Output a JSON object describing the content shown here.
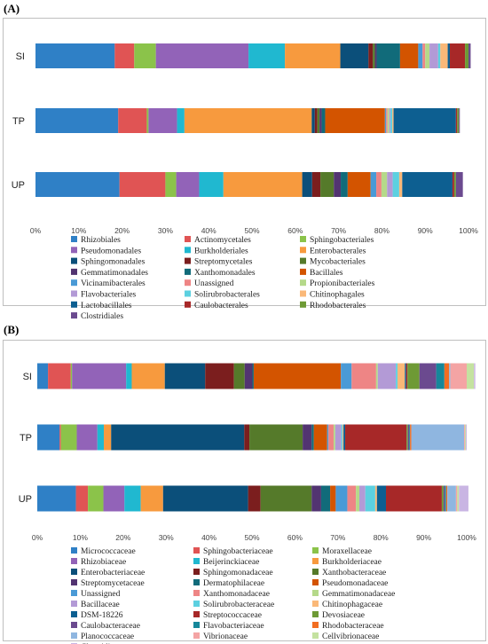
{
  "chart_data": [
    {
      "panel": "(A)",
      "type": "bar",
      "orientation": "horizontal",
      "stacked": true,
      "categories": [
        "SI",
        "TP",
        "UP"
      ],
      "x_ticks": [
        "0%",
        "10%",
        "20%",
        "30%",
        "40%",
        "50%",
        "60%",
        "70%",
        "80%",
        "90%",
        "100%"
      ],
      "xlim": [
        0,
        100
      ],
      "legend_position": "bottom",
      "series": [
        {
          "name": "Rhizobiales",
          "color": "#2f80c6",
          "values": [
            18.3,
            19.1,
            19.4
          ]
        },
        {
          "name": "Actinomycetales",
          "color": "#e05454",
          "values": [
            4.5,
            6.6,
            10.6
          ]
        },
        {
          "name": "Sphingobacteriales",
          "color": "#8bc34a",
          "values": [
            5.0,
            0.4,
            2.5
          ]
        },
        {
          "name": "Pseudomonadales",
          "color": "#9263b8",
          "values": [
            21.4,
            6.6,
            5.3
          ]
        },
        {
          "name": "Burkholderiales",
          "color": "#20b8d0",
          "values": [
            8.4,
            1.7,
            5.6
          ]
        },
        {
          "name": "Enterobacterales",
          "color": "#f79a3e",
          "values": [
            12.8,
            29.4,
            18.2
          ]
        },
        {
          "name": "Sphingomonadales",
          "color": "#0b4f7a",
          "values": [
            6.5,
            0.7,
            2.3
          ]
        },
        {
          "name": "Streptomycetales",
          "color": "#7b1e1e",
          "values": [
            1.0,
            0.6,
            1.9
          ]
        },
        {
          "name": "Mycobacteriales",
          "color": "#557a2a",
          "values": [
            0.5,
            0.5,
            3.1
          ]
        },
        {
          "name": "Gemmatimonadales",
          "color": "#523471",
          "values": [
            0.4,
            0.5,
            1.6
          ]
        },
        {
          "name": "Xanthomonadales",
          "color": "#116b7a",
          "values": [
            5.4,
            0.8,
            1.6
          ]
        },
        {
          "name": "Bacillales",
          "color": "#d35400",
          "values": [
            4.2,
            13.8,
            5.3
          ]
        },
        {
          "name": "Vicinamibacterales",
          "color": "#4a9ad6",
          "values": [
            1.0,
            0.3,
            1.3
          ]
        },
        {
          "name": "Unassigned",
          "color": "#ee8585",
          "values": [
            0.6,
            0.3,
            1.2
          ]
        },
        {
          "name": "Propionibacteriales",
          "color": "#b5d98a",
          "values": [
            1.0,
            0.4,
            1.3
          ]
        },
        {
          "name": "Flavobacteriales",
          "color": "#b39ad6",
          "values": [
            2.0,
            0.3,
            1.3
          ]
        },
        {
          "name": "Solirubrobacterales",
          "color": "#5cd0e0",
          "values": [
            0.5,
            0.4,
            1.5
          ]
        },
        {
          "name": "Chitinophagales",
          "color": "#fab878",
          "values": [
            1.7,
            0.3,
            0.7
          ]
        },
        {
          "name": "Lactobacillales",
          "color": "#0d5f91",
          "values": [
            0.5,
            14.4,
            11.6
          ]
        },
        {
          "name": "Caulobacterales",
          "color": "#a72828",
          "values": [
            3.5,
            0.3,
            0.4
          ]
        },
        {
          "name": "Rhodobacterales",
          "color": "#6e9a35",
          "values": [
            0.8,
            0.4,
            0.4
          ]
        },
        {
          "name": "Clostridiales",
          "color": "#6b4a8f",
          "values": [
            0.5,
            0.2,
            1.6
          ]
        }
      ]
    },
    {
      "panel": "(B)",
      "type": "bar",
      "orientation": "horizontal",
      "stacked": true,
      "categories": [
        "SI",
        "TP",
        "UP"
      ],
      "x_ticks": [
        "0%",
        "10%",
        "20%",
        "30%",
        "40%",
        "50%",
        "60%",
        "70%",
        "80%",
        "90%",
        "100%"
      ],
      "xlim": [
        0,
        100
      ],
      "legend_position": "bottom",
      "series": [
        {
          "name": "Micrococcaceae",
          "color": "#2f80c6",
          "values": [
            2.5,
            5.2,
            9.0
          ]
        },
        {
          "name": "Sphingobacteriaceae",
          "color": "#e05454",
          "values": [
            5.3,
            0.3,
            2.8
          ]
        },
        {
          "name": "Moraxellaceae",
          "color": "#8bc34a",
          "values": [
            0.3,
            3.7,
            3.6
          ]
        },
        {
          "name": "Rhizobiaceae",
          "color": "#9263b8",
          "values": [
            12.6,
            4.8,
            4.9
          ]
        },
        {
          "name": "Beijerinckiaceae",
          "color": "#20b8d0",
          "values": [
            1.3,
            1.5,
            3.8
          ]
        },
        {
          "name": "Burkholderiaceae",
          "color": "#f79a3e",
          "values": [
            7.7,
            1.7,
            5.2
          ]
        },
        {
          "name": "Enterobacteriaceae",
          "color": "#0b4f7a",
          "values": [
            9.4,
            31.0,
            19.8
          ]
        },
        {
          "name": "Sphingomonadaceae",
          "color": "#7b1e1e",
          "values": [
            6.7,
            1.2,
            2.9
          ]
        },
        {
          "name": "Xanthobacteraceae",
          "color": "#557a2a",
          "values": [
            2.5,
            12.4,
            11.9
          ]
        },
        {
          "name": "Streptomycetaceae",
          "color": "#523471",
          "values": [
            1.8,
            2.1,
            2.2
          ]
        },
        {
          "name": "Dermatophilaceae",
          "color": "#116b7a",
          "values": [
            0.3,
            0.5,
            2.1
          ]
        },
        {
          "name": "Pseudomonadaceae",
          "color": "#d35400",
          "values": [
            20.3,
            3.1,
            1.3
          ]
        },
        {
          "name": "Unassigned",
          "color": "#4a9ad6",
          "values": [
            2.5,
            0.3,
            2.7
          ]
        },
        {
          "name": "Xanthomonadaceae",
          "color": "#ee8585",
          "values": [
            5.7,
            1.2,
            2.0
          ]
        },
        {
          "name": "Gemmatimonadaceae",
          "color": "#b5d98a",
          "values": [
            0.4,
            0.4,
            0.8
          ]
        },
        {
          "name": "Bacillaceae",
          "color": "#b39ad6",
          "values": [
            4.2,
            1.4,
            1.4
          ]
        },
        {
          "name": "Solirubrobacteraceae",
          "color": "#5cd0e0",
          "values": [
            0.4,
            0.3,
            2.3
          ]
        },
        {
          "name": "Chitinophagaceae",
          "color": "#fab878",
          "values": [
            1.7,
            0.2,
            0.4
          ]
        },
        {
          "name": "DSM-18226",
          "color": "#0d5f91",
          "values": [
            0.3,
            0.4,
            2.1
          ]
        },
        {
          "name": "Streptococcaceae",
          "color": "#a72828",
          "values": [
            0.3,
            14.3,
            13.0
          ]
        },
        {
          "name": "Devosiaceae",
          "color": "#6e9a35",
          "values": [
            2.8,
            0.3,
            0.4
          ]
        },
        {
          "name": "Caulobacteraceae",
          "color": "#6b4a8f",
          "values": [
            3.9,
            0.3,
            0.3
          ]
        },
        {
          "name": "Flavobacteriaceae",
          "color": "#16879a",
          "values": [
            1.9,
            0.2,
            0.3
          ]
        },
        {
          "name": "Rhodobacteraceae",
          "color": "#f26d21",
          "values": [
            1.1,
            0.3,
            0.3
          ]
        },
        {
          "name": "Planococcaceae",
          "color": "#8fb6e0",
          "values": [
            0.3,
            12.3,
            2.0
          ]
        },
        {
          "name": "Vibrionaceae",
          "color": "#f4a4a4",
          "values": [
            3.8,
            0.2,
            0.3
          ]
        },
        {
          "name": "Cellvibrionaceae",
          "color": "#c4e2a0",
          "values": [
            1.7,
            0.2,
            0.4
          ]
        },
        {
          "name": "Clostridiaceae",
          "color": "#c9b5e3",
          "values": [
            0.3,
            0.2,
            2.2
          ]
        }
      ]
    }
  ]
}
